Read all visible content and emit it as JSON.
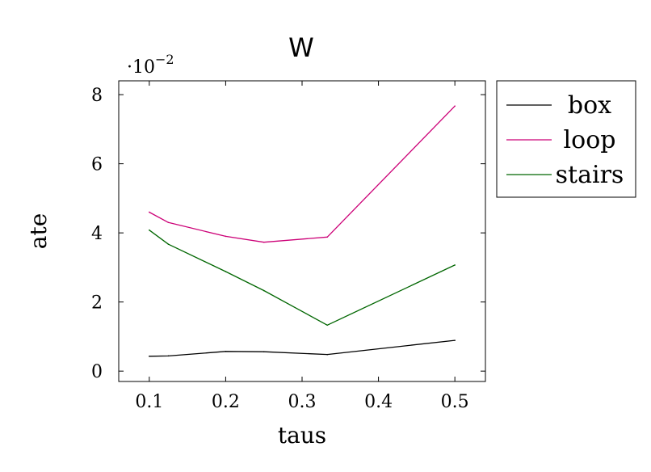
{
  "chart_data": {
    "type": "line",
    "title": "W",
    "xlabel": "taus",
    "ylabel": "ate",
    "y_scale_prefix": "·10",
    "y_scale_exponent": "−2",
    "xlim": [
      0.06,
      0.54
    ],
    "ylim": [
      -0.3,
      8.4
    ],
    "x_ticks": [
      0.1,
      0.2,
      0.3,
      0.4,
      0.5
    ],
    "x_tick_labels": [
      "0.1",
      "0.2",
      "0.3",
      "0.4",
      "0.5"
    ],
    "y_ticks": [
      0,
      2,
      4,
      6,
      8
    ],
    "y_tick_labels": [
      "0",
      "2",
      "4",
      "6",
      "8"
    ],
    "grid": false,
    "legend_position": "outside-top-right",
    "series": [
      {
        "name": "box",
        "color": "#000000",
        "x": [
          0.1,
          0.125,
          0.2,
          0.25,
          0.333,
          0.5
        ],
        "y": [
          0.43,
          0.44,
          0.57,
          0.56,
          0.48,
          0.89
        ]
      },
      {
        "name": "loop",
        "color": "#cc0077",
        "x": [
          0.1,
          0.125,
          0.2,
          0.25,
          0.333,
          0.5
        ],
        "y": [
          4.6,
          4.3,
          3.9,
          3.73,
          3.88,
          7.67
        ]
      },
      {
        "name": "stairs",
        "color": "#006600",
        "x": [
          0.1,
          0.125,
          0.2,
          0.25,
          0.333,
          0.5
        ],
        "y": [
          4.08,
          3.67,
          2.88,
          2.33,
          1.33,
          3.07
        ]
      }
    ]
  }
}
